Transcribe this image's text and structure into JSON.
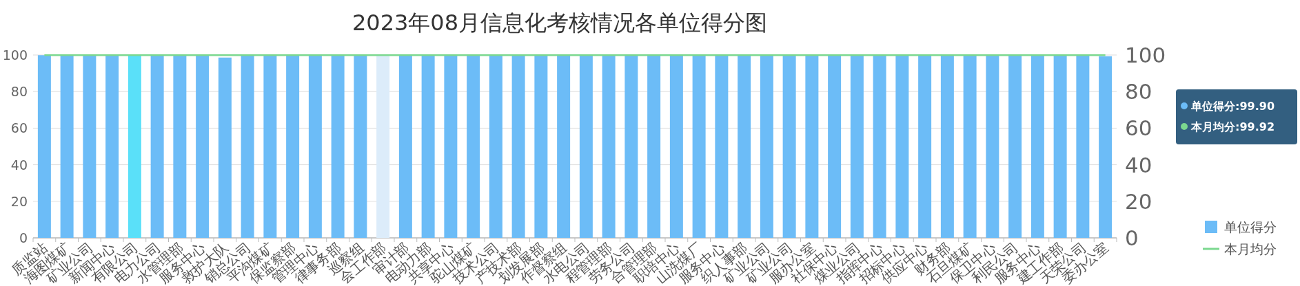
{
  "chart_data": {
    "type": "bar",
    "title": "2023年08月信息化考核情况各单位得分图",
    "categories": [
      "质监站",
      "海图煤矿",
      "矿业公司",
      "新闻中心",
      "有限公司",
      "电力公司",
      "水管理部",
      "服务中心",
      "救护大队",
      "销总公司",
      "平沟煤矿",
      "保监察部",
      "管理中心",
      "律事务部",
      "巡察组",
      "会工作部",
      "审计部",
      "电动力部",
      "共享中心",
      "驼山煤矿",
      "技术公司",
      "产技术部",
      "划发展部",
      "作督察组",
      "水电公司",
      "程管理部",
      "劳务公司",
      "合管理部",
      "职培中心",
      "山洗煤厂",
      "服务中心",
      "织人事部",
      "矿业公司",
      "矿业公司",
      "服办公室",
      "社保中心",
      "煤业公司",
      "指挥中心",
      "招标中心",
      "供应中心",
      "财务部",
      "石旦煤矿",
      "保卫中心",
      "利民公司",
      "服务中心",
      "建工作部",
      "天荣公司",
      "委办公室"
    ],
    "series": [
      {
        "name": "单位得分",
        "color": "#6cbcf7",
        "colors": [
          "#6cbcf7",
          "#6cbcf7",
          "#6cbcf7",
          "#6cbcf7",
          "#5ae0f9",
          "#6cbcf7",
          "#6cbcf7",
          "#6cbcf7",
          "#6cbcf7",
          "#6cbcf7",
          "#6cbcf7",
          "#6cbcf7",
          "#6cbcf7",
          "#6cbcf7",
          "#6cbcf7",
          "#dcecfa",
          "#6cbcf7",
          "#6cbcf7",
          "#6cbcf7",
          "#6cbcf7",
          "#6cbcf7",
          "#6cbcf7",
          "#6cbcf7",
          "#6cbcf7",
          "#6cbcf7",
          "#6cbcf7",
          "#6cbcf7",
          "#6cbcf7",
          "#6cbcf7",
          "#6cbcf7",
          "#6cbcf7",
          "#6cbcf7",
          "#6cbcf7",
          "#6cbcf7",
          "#6cbcf7",
          "#6cbcf7",
          "#6cbcf7",
          "#6cbcf7",
          "#6cbcf7",
          "#6cbcf7",
          "#6cbcf7",
          "#6cbcf7",
          "#6cbcf7",
          "#6cbcf7",
          "#6cbcf7",
          "#6cbcf7",
          "#6cbcf7",
          "#6cbcf7"
        ],
        "values": [
          99.9,
          99.9,
          99.9,
          99.9,
          99.9,
          99.9,
          99.9,
          99.9,
          98.6,
          99.9,
          99.9,
          99.9,
          99.9,
          99.9,
          99.9,
          99.9,
          99.9,
          99.9,
          99.9,
          99.9,
          99.9,
          99.9,
          99.9,
          99.9,
          99.9,
          99.9,
          99.9,
          99.9,
          99.9,
          99.9,
          99.9,
          99.9,
          99.9,
          99.9,
          99.9,
          99.9,
          99.9,
          99.9,
          99.9,
          99.9,
          99.9,
          99.9,
          99.9,
          99.9,
          99.9,
          99.9,
          99.9,
          99.3
        ]
      },
      {
        "name": "本月均分",
        "type": "line",
        "axis": "y2",
        "color": "#7bd88f",
        "values": [
          99.92,
          99.92,
          99.92,
          99.92,
          99.92,
          99.92,
          99.92,
          99.92,
          99.92,
          99.92,
          99.92,
          99.92,
          99.92,
          99.92,
          99.92,
          99.92,
          99.92,
          99.92,
          99.92,
          99.92,
          99.92,
          99.92,
          99.92,
          99.92,
          99.92,
          99.92,
          99.92,
          99.92,
          99.92,
          99.92,
          99.92,
          99.92,
          99.92,
          99.92,
          99.92,
          99.92,
          99.92,
          99.92,
          99.92,
          99.92,
          99.92,
          99.92,
          99.92,
          99.92,
          99.92,
          99.92,
          99.92,
          99.92
        ]
      }
    ],
    "ylim": [
      0,
      100
    ],
    "yticks": [
      0,
      20,
      40,
      60,
      80,
      100
    ],
    "y2lim": [
      0,
      100
    ],
    "y2ticks": [
      0,
      20,
      40,
      60,
      80,
      100
    ],
    "grid": "y",
    "legend": "right",
    "annotations": [
      "单位得分:99.90",
      "本月均分:99.92"
    ]
  }
}
